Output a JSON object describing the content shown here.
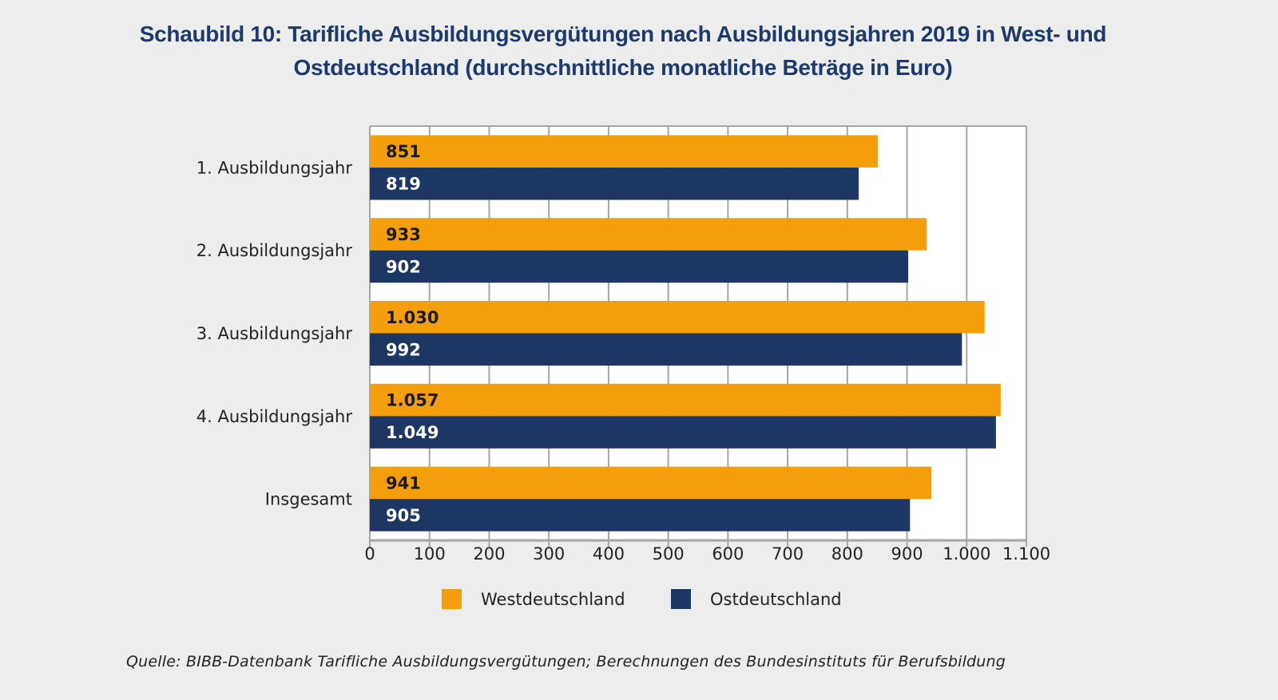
{
  "chart_data": {
    "type": "bar",
    "orientation": "horizontal",
    "title": "Schaubild 10: Tarifliche Ausbildungsvergütungen nach Ausbildungsjahren 2019 in West- und Ostdeutschland (durchschnittliche monatliche Beträge in Euro)",
    "title_lines": [
      "Schaubild 10: Tarifliche Ausbildungsvergütungen nach Ausbildungsjahren 2019 in West- und",
      "Ostdeutschland (durchschnittliche monatliche Beträge in Euro)"
    ],
    "categories": [
      "1. Ausbildungsjahr",
      "2. Ausbildungsjahr",
      "3. Ausbildungsjahr",
      "4. Ausbildungsjahr",
      "Insgesamt"
    ],
    "series": [
      {
        "name": "Westdeutschland",
        "color": "#f59e0b",
        "label_color": "#1a1a1a",
        "values": [
          851,
          933,
          1030,
          1057,
          941
        ],
        "labels": [
          "851",
          "933",
          "1.030",
          "1.057",
          "941"
        ]
      },
      {
        "name": "Ostdeutschland",
        "color": "#1c3764",
        "label_color": "#ffffff",
        "values": [
          819,
          902,
          992,
          1049,
          905
        ],
        "labels": [
          "819",
          "902",
          "992",
          "1.049",
          "905"
        ]
      }
    ],
    "xlim": [
      0,
      1100
    ],
    "xticks": [
      0,
      100,
      200,
      300,
      400,
      500,
      600,
      700,
      800,
      900,
      1000,
      1100
    ],
    "xtick_labels": [
      "0",
      "100",
      "200",
      "300",
      "400",
      "500",
      "600",
      "700",
      "800",
      "900",
      "1.000",
      "1.100"
    ],
    "xlabel": "",
    "ylabel": "",
    "grid": true,
    "legend_position": "bottom"
  },
  "source": "Quelle: BIBB-Datenbank Tarifliche Ausbildungsvergütungen; Berechnungen des Bundesinstituts für Berufsbildung"
}
